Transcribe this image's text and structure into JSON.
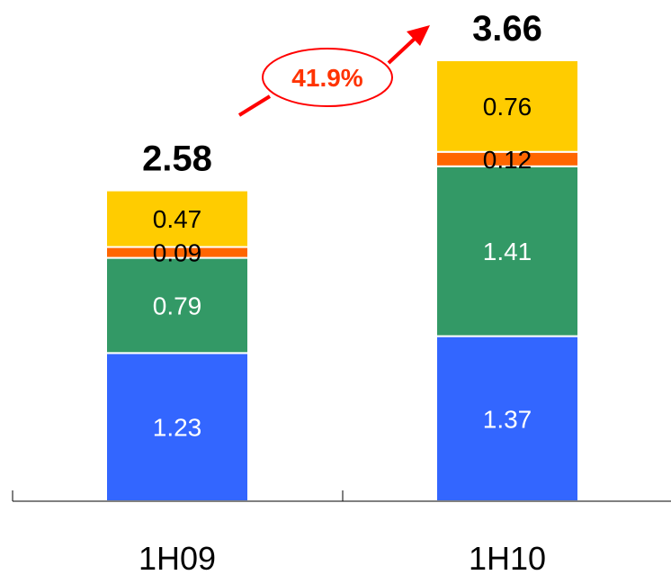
{
  "chart_data": {
    "type": "bar",
    "stacked": true,
    "categories": [
      "1H09",
      "1H10"
    ],
    "series": [
      {
        "values": [
          1.23,
          1.37
        ],
        "color": "#3366ff",
        "label_color": "#ffffff"
      },
      {
        "values": [
          0.79,
          1.41
        ],
        "color": "#339966",
        "label_color": "#ffffff"
      },
      {
        "values": [
          0.09,
          0.12
        ],
        "color": "#ff6600",
        "label_color": "#000000"
      },
      {
        "values": [
          0.47,
          0.76
        ],
        "color": "#ffcc00",
        "label_color": "#000000"
      }
    ],
    "value_labels": [
      [
        "1.23",
        "0.79",
        "0.09",
        "0.47"
      ],
      [
        "1.37",
        "1.41",
        "0.12",
        "0.76"
      ]
    ],
    "totals": [
      "2.58",
      "3.66"
    ],
    "growth": {
      "label": "41.9%",
      "color": "#ff0000",
      "text_color": "#ff3300"
    },
    "ylim": [
      0,
      3.66
    ],
    "grid": false,
    "legend": "none"
  }
}
